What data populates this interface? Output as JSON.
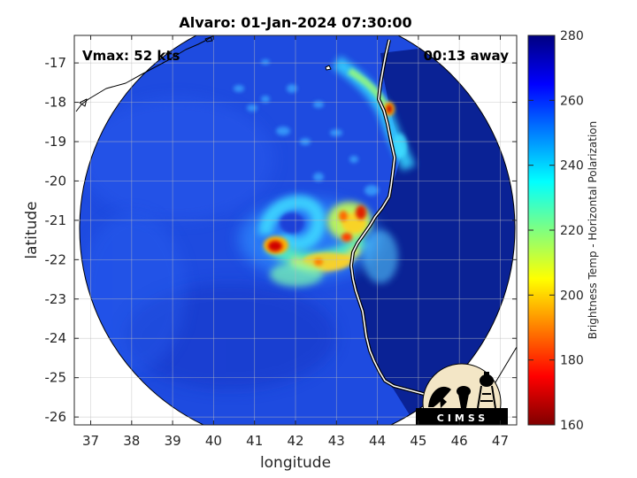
{
  "title": "Alvaro: 01-Jan-2024 07:30:00",
  "annotations": {
    "vmax": "Vmax: 52 kts",
    "time_away": "00:13 away"
  },
  "axes": {
    "xlabel": "longitude",
    "ylabel": "latitude",
    "xlim": [
      36.6,
      47.4
    ],
    "ylim": [
      -26.2,
      -16.3
    ],
    "xticks": [
      "37",
      "38",
      "39",
      "40",
      "41",
      "42",
      "43",
      "44",
      "45",
      "46",
      "47"
    ],
    "yticks": [
      "-17",
      "-18",
      "-19",
      "-20",
      "-21",
      "-22",
      "-23",
      "-24",
      "-25",
      "-26"
    ],
    "grid": true
  },
  "colorbar": {
    "label": "Brightness Temp - Horizontal Polarization",
    "range": [
      160,
      280
    ],
    "ticks": [
      "280",
      "260",
      "240",
      "220",
      "200",
      "180",
      "160"
    ],
    "colormap": "jet"
  },
  "logo": {
    "text": "CIMSS"
  },
  "colors": {
    "swath_background": "#1a3fd6",
    "swath_dark": "#0a1f8a",
    "land_dark": "#00107a",
    "coastline": "#ffffff",
    "outline": "#000000"
  },
  "chart_data": {
    "type": "heatmap",
    "title": "Alvaro: 01-Jan-2024 07:30:00",
    "xlabel": "longitude",
    "ylabel": "latitude",
    "xlim": [
      36.6,
      47.4
    ],
    "ylim": [
      -26.2,
      -16.3
    ],
    "colorbar_range": [
      160,
      280
    ],
    "swath_center": {
      "lon": 42.0,
      "lat": -21.15
    },
    "features": [
      {
        "name": "eyewall-cold-spot",
        "lon": 41.5,
        "lat": -21.65,
        "value": 170
      },
      {
        "name": "convective-band",
        "lon": 43.3,
        "lat": -21.4,
        "value": 200
      },
      {
        "name": "coastal-cold-spot",
        "lon": 44.2,
        "lat": -18.1,
        "value": 175
      },
      {
        "name": "coastal-rainband",
        "lon": 44.3,
        "lat": -19.0,
        "value": 225
      }
    ]
  }
}
